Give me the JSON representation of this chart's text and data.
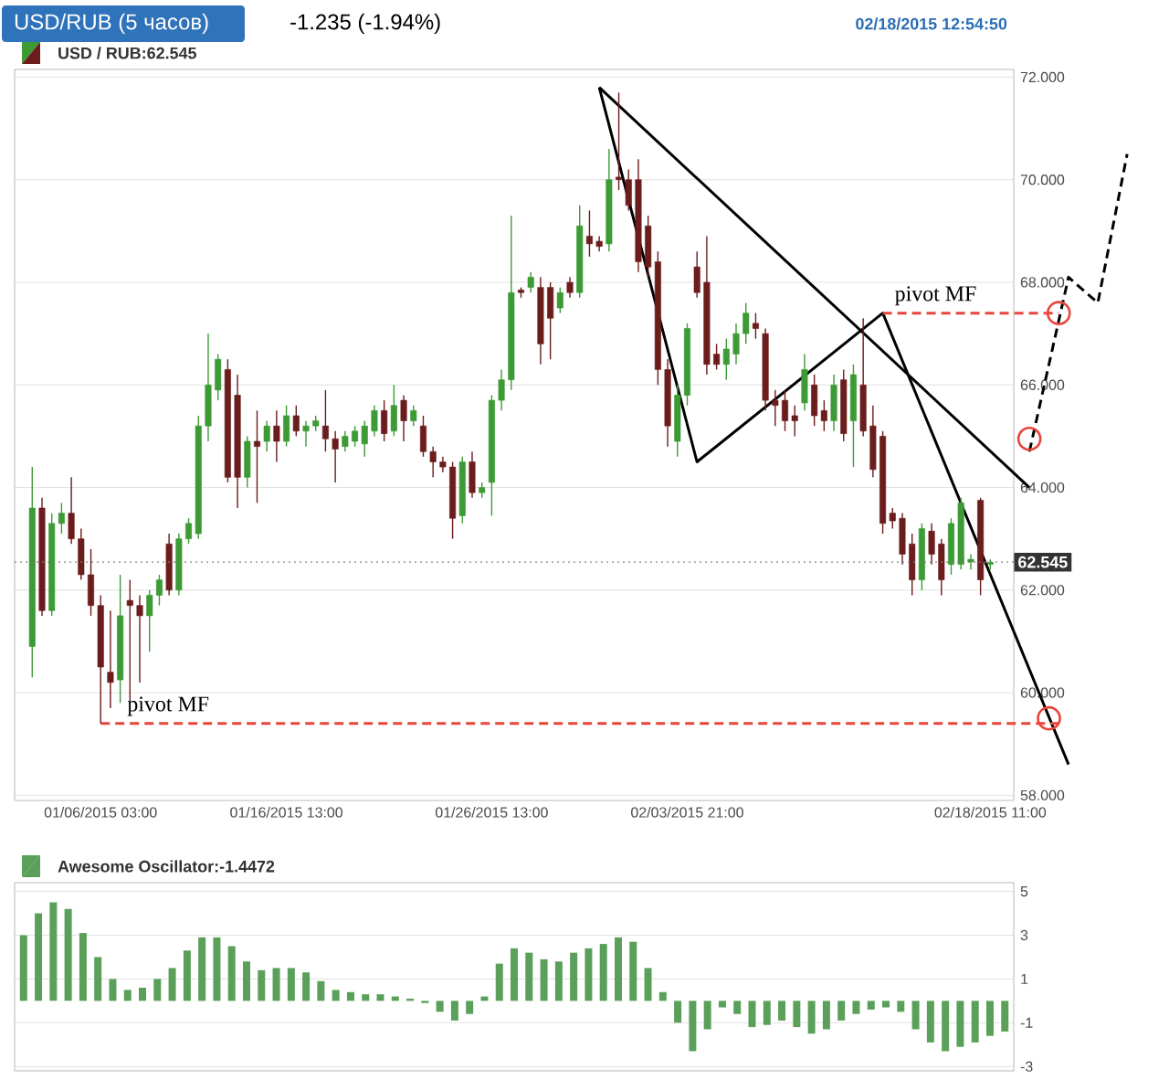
{
  "chart_data": [
    {
      "type": "candlestick",
      "title": "USD/RUB (5 часов)",
      "annotations": [
        "-1.235 (-1.94%)",
        "02/18/2015 12:54:50",
        "pivot MF",
        "pivot MF"
      ],
      "categories": [
        null,
        null,
        null,
        null,
        null,
        null,
        null,
        "01/06/2015 03:00",
        null,
        null,
        null,
        null,
        null,
        null,
        null,
        null,
        null,
        null,
        null,
        null,
        null,
        null,
        null,
        null,
        null,
        null,
        "01/16/2015 13:00",
        null,
        null,
        null,
        null,
        null,
        null,
        null,
        null,
        null,
        null,
        null,
        null,
        null,
        null,
        null,
        null,
        null,
        null,
        null,
        null,
        "01/26/2015 13:00",
        null,
        null,
        null,
        null,
        null,
        null,
        null,
        null,
        null,
        null,
        null,
        null,
        null,
        null,
        null,
        null,
        null,
        null,
        null,
        "02/03/2015 21:00",
        null,
        null,
        null,
        null,
        null,
        null,
        null,
        null,
        null,
        null,
        null,
        null,
        null,
        null,
        null,
        null,
        null,
        null,
        null,
        null,
        null,
        null,
        null,
        null,
        null,
        null,
        null,
        null,
        null,
        null,
        "02/18/2015 11:00",
        null,
        null,
        null,
        null,
        null,
        null,
        null,
        null,
        null,
        null,
        null,
        null,
        null,
        null
      ],
      "series": [
        {
          "type": "candlestick",
          "name": "USD / RUB:62.545",
          "ohlc": [
            [
              60.9,
              64.4,
              60.3,
              63.6
            ],
            [
              63.6,
              63.8,
              61.5,
              61.6
            ],
            [
              61.6,
              63.5,
              61.5,
              63.3
            ],
            [
              63.3,
              63.7,
              63.1,
              63.5
            ],
            [
              63.5,
              64.2,
              62.9,
              63.0
            ],
            [
              63.0,
              63.2,
              62.2,
              62.3
            ],
            [
              62.3,
              62.8,
              61.5,
              61.7
            ],
            [
              61.7,
              61.9,
              59.4,
              60.5
            ],
            [
              60.4,
              61.6,
              59.7,
              60.2
            ],
            [
              60.25,
              62.3,
              59.8,
              61.5
            ],
            [
              61.8,
              62.2,
              59.8,
              61.7
            ],
            [
              61.7,
              61.9,
              60.2,
              61.5
            ],
            [
              61.5,
              62.0,
              60.8,
              61.9
            ],
            [
              61.9,
              62.3,
              61.7,
              62.2
            ],
            [
              62.9,
              63.1,
              61.9,
              62.0
            ],
            [
              62.0,
              63.1,
              61.9,
              63.0
            ],
            [
              63.0,
              63.4,
              62.9,
              63.3
            ],
            [
              63.1,
              65.4,
              63.0,
              65.2
            ],
            [
              65.2,
              67.0,
              64.9,
              66.0
            ],
            [
              65.9,
              66.6,
              65.7,
              66.5
            ],
            [
              66.3,
              66.5,
              64.1,
              64.2
            ],
            [
              65.8,
              66.2,
              63.6,
              64.2
            ],
            [
              64.2,
              65.0,
              64.0,
              64.9
            ],
            [
              64.9,
              65.5,
              63.7,
              64.8
            ],
            [
              64.9,
              65.3,
              64.7,
              65.2
            ],
            [
              65.2,
              65.5,
              64.5,
              64.9
            ],
            [
              64.9,
              65.6,
              64.8,
              65.4
            ],
            [
              65.4,
              65.6,
              65.0,
              65.1
            ],
            [
              65.1,
              65.3,
              64.8,
              65.2
            ],
            [
              65.2,
              65.4,
              65.1,
              65.3
            ],
            [
              65.2,
              65.9,
              64.7,
              64.95
            ],
            [
              64.95,
              65.1,
              64.1,
              64.75
            ],
            [
              64.8,
              65.1,
              64.7,
              65.0
            ],
            [
              64.9,
              65.2,
              64.8,
              65.1
            ],
            [
              64.85,
              65.3,
              64.6,
              65.2
            ],
            [
              65.1,
              65.6,
              65.0,
              65.5
            ],
            [
              65.5,
              65.7,
              64.9,
              65.05
            ],
            [
              65.1,
              66.0,
              65.0,
              65.6
            ],
            [
              65.7,
              65.8,
              64.9,
              65.3
            ],
            [
              65.3,
              65.6,
              65.2,
              65.5
            ],
            [
              65.2,
              65.4,
              64.6,
              64.7
            ],
            [
              64.7,
              64.8,
              64.2,
              64.5
            ],
            [
              64.5,
              64.6,
              64.3,
              64.4
            ],
            [
              64.4,
              64.5,
              63.0,
              63.4
            ],
            [
              63.45,
              64.6,
              63.3,
              64.5
            ],
            [
              64.5,
              64.7,
              63.8,
              63.9
            ],
            [
              63.9,
              64.1,
              63.8,
              64.0
            ],
            [
              64.1,
              65.8,
              63.45,
              65.7
            ],
            [
              65.7,
              66.3,
              65.5,
              66.1
            ],
            [
              66.1,
              69.3,
              65.9,
              67.8
            ],
            [
              67.85,
              67.9,
              67.7,
              67.8
            ],
            [
              67.9,
              68.2,
              67.8,
              68.1
            ],
            [
              67.9,
              68.1,
              66.4,
              66.8
            ],
            [
              67.9,
              68.0,
              66.5,
              67.3
            ],
            [
              67.5,
              67.9,
              67.4,
              67.8
            ],
            [
              68.0,
              68.1,
              67.7,
              67.8
            ],
            [
              67.8,
              69.5,
              67.7,
              69.1
            ],
            [
              68.9,
              69.4,
              68.5,
              68.75
            ],
            [
              68.8,
              68.9,
              68.6,
              68.7
            ],
            [
              68.75,
              70.6,
              68.6,
              70.0
            ],
            [
              70.05,
              71.7,
              69.8,
              70.0
            ],
            [
              70.0,
              70.2,
              69.4,
              69.5
            ],
            [
              70.0,
              70.4,
              68.2,
              68.4
            ],
            [
              69.1,
              69.3,
              68.1,
              68.3
            ],
            [
              68.4,
              68.6,
              66.0,
              66.3
            ],
            [
              66.3,
              66.5,
              64.8,
              65.2
            ],
            [
              64.9,
              66.0,
              64.6,
              65.8
            ],
            [
              65.8,
              67.2,
              65.6,
              67.1
            ],
            [
              68.3,
              68.6,
              67.7,
              67.8
            ],
            [
              68.0,
              68.9,
              66.2,
              66.4
            ],
            [
              66.6,
              66.8,
              66.3,
              66.4
            ],
            [
              66.4,
              66.9,
              66.1,
              66.7
            ],
            [
              66.6,
              67.2,
              66.4,
              67.0
            ],
            [
              67.0,
              67.6,
              66.8,
              67.4
            ],
            [
              67.2,
              67.4,
              66.9,
              67.1
            ],
            [
              67.0,
              67.1,
              65.5,
              65.7
            ],
            [
              65.7,
              65.9,
              65.2,
              65.6
            ],
            [
              65.7,
              65.9,
              65.1,
              65.3
            ],
            [
              65.4,
              65.6,
              65.0,
              65.3
            ],
            [
              65.65,
              66.6,
              65.5,
              66.3
            ],
            [
              66.0,
              66.2,
              65.2,
              65.4
            ],
            [
              65.5,
              65.7,
              65.1,
              65.3
            ],
            [
              65.3,
              66.2,
              65.1,
              66.0
            ],
            [
              66.1,
              66.3,
              64.9,
              65.05
            ],
            [
              65.3,
              66.4,
              64.4,
              66.2
            ],
            [
              66.0,
              67.3,
              65.0,
              65.1
            ],
            [
              65.2,
              65.6,
              64.2,
              64.35
            ],
            [
              65.0,
              65.1,
              63.1,
              63.3
            ],
            [
              63.5,
              63.6,
              63.2,
              63.35
            ],
            [
              63.4,
              63.5,
              62.5,
              62.7
            ],
            [
              62.9,
              63.1,
              61.9,
              62.2
            ],
            [
              62.2,
              63.3,
              62.0,
              63.2
            ],
            [
              63.15,
              63.3,
              62.5,
              62.7
            ],
            [
              62.9,
              63.0,
              61.9,
              62.2
            ],
            [
              62.5,
              63.4,
              62.3,
              63.3
            ],
            [
              62.5,
              63.8,
              62.4,
              63.7
            ],
            [
              62.55,
              62.7,
              62.4,
              62.6
            ],
            [
              63.75,
              63.8,
              61.9,
              62.2
            ],
            [
              62.5,
              62.6,
              62.4,
              62.545
            ],
            null,
            null,
            null,
            null,
            null,
            null,
            null,
            null,
            null,
            null,
            null,
            null,
            null,
            null
          ],
          "colors": [
            "#3d9b35",
            "#6b1c1c",
            "#3d9b35",
            "#3d9b35",
            "#6b1c1c",
            "#6b1c1c",
            "#6b1c1c",
            "#6b1c1c",
            "#6b1c1c",
            "#3d9b35",
            "#6b1c1c",
            "#6b1c1c",
            "#3d9b35",
            "#3d9b35",
            "#6b1c1c",
            "#3d9b35",
            "#3d9b35",
            "#3d9b35",
            "#3d9b35",
            "#3d9b35",
            "#6b1c1c",
            "#6b1c1c",
            "#3d9b35",
            "#6b1c1c",
            "#3d9b35",
            "#6b1c1c",
            "#3d9b35",
            "#6b1c1c",
            "#3d9b35",
            "#3d9b35",
            "#6b1c1c",
            "#6b1c1c",
            "#3d9b35",
            "#3d9b35",
            "#3d9b35",
            "#3d9b35",
            "#6b1c1c",
            "#3d9b35",
            "#6b1c1c",
            "#3d9b35",
            "#6b1c1c",
            "#6b1c1c",
            "#6b1c1c",
            "#6b1c1c",
            "#3d9b35",
            "#6b1c1c",
            "#3d9b35",
            "#3d9b35",
            "#3d9b35",
            "#3d9b35",
            "#6b1c1c",
            "#3d9b35",
            "#6b1c1c",
            "#6b1c1c",
            "#3d9b35",
            "#6b1c1c",
            "#3d9b35",
            "#6b1c1c",
            "#6b1c1c",
            "#3d9b35",
            "#6b1c1c",
            "#6b1c1c",
            "#6b1c1c",
            "#6b1c1c",
            "#6b1c1c",
            "#6b1c1c",
            "#3d9b35",
            "#3d9b35",
            "#6b1c1c",
            "#6b1c1c",
            "#6b1c1c",
            "#3d9b35",
            "#3d9b35",
            "#3d9b35",
            "#6b1c1c",
            "#6b1c1c",
            "#6b1c1c",
            "#6b1c1c",
            "#6b1c1c",
            "#3d9b35",
            "#6b1c1c",
            "#6b1c1c",
            "#3d9b35",
            "#6b1c1c",
            "#3d9b35",
            "#6b1c1c",
            "#6b1c1c",
            "#6b1c1c",
            "#6b1c1c",
            "#6b1c1c",
            "#6b1c1c",
            "#3d9b35",
            "#6b1c1c",
            "#6b1c1c",
            "#3d9b35",
            "#3d9b35",
            "#3d9b35",
            "#6b1c1c",
            "#3d9b35",
            null,
            null,
            null,
            null,
            null,
            null,
            null,
            null,
            null,
            null,
            null,
            null,
            null,
            null
          ]
        },
        {
          "type": "line",
          "color": "#000000",
          "values": [
            null,
            null,
            null,
            null,
            null,
            null,
            null,
            null,
            null,
            null,
            null,
            null,
            null,
            null,
            null,
            null,
            null,
            null,
            null,
            null,
            null,
            null,
            null,
            null,
            null,
            null,
            null,
            null,
            null,
            null,
            null,
            null,
            null,
            null,
            null,
            null,
            null,
            null,
            null,
            null,
            null,
            null,
            null,
            null,
            null,
            null,
            null,
            null,
            null,
            null,
            null,
            null,
            null,
            null,
            null,
            null,
            null,
            null,
            71.8,
            null,
            null,
            null,
            null,
            null,
            null,
            null,
            null,
            null,
            null,
            null,
            null,
            null,
            null,
            null,
            null,
            null,
            null,
            null,
            null,
            null,
            null,
            null,
            null,
            null,
            null,
            null,
            null,
            null,
            null,
            null,
            null,
            null,
            null,
            null,
            null,
            null,
            null,
            null,
            null,
            null,
            null,
            null,
            64.0,
            null,
            null,
            null,
            null,
            null,
            null,
            null,
            null,
            null,
            null
          ]
        },
        {
          "type": "line",
          "color": "#000000",
          "values": [
            null,
            null,
            null,
            null,
            null,
            null,
            null,
            null,
            null,
            null,
            null,
            null,
            null,
            null,
            null,
            null,
            null,
            null,
            null,
            null,
            null,
            null,
            null,
            null,
            null,
            null,
            null,
            null,
            null,
            null,
            null,
            null,
            null,
            null,
            null,
            null,
            null,
            null,
            null,
            null,
            null,
            null,
            null,
            null,
            null,
            null,
            null,
            null,
            null,
            null,
            null,
            null,
            null,
            null,
            null,
            null,
            null,
            null,
            71.8,
            null,
            null,
            null,
            null,
            null,
            null,
            null,
            null,
            null,
            64.5,
            null,
            null,
            null,
            null,
            null,
            null,
            null,
            null,
            null,
            null,
            null,
            null,
            null,
            null,
            null,
            null,
            null,
            null,
            67.4,
            null,
            null,
            null,
            null,
            null,
            null,
            null,
            null,
            null,
            null,
            null,
            null,
            null,
            null,
            null,
            null,
            null,
            null,
            58.6,
            null,
            null,
            null,
            null,
            null,
            null
          ]
        },
        {
          "type": "line",
          "color": "#000000",
          "line_style": "dashed",
          "values": [
            null,
            null,
            null,
            null,
            null,
            null,
            null,
            null,
            null,
            null,
            null,
            null,
            null,
            null,
            null,
            null,
            null,
            null,
            null,
            null,
            null,
            null,
            null,
            null,
            null,
            null,
            null,
            null,
            null,
            null,
            null,
            null,
            null,
            null,
            null,
            null,
            null,
            null,
            null,
            null,
            null,
            null,
            null,
            null,
            null,
            null,
            null,
            null,
            null,
            null,
            null,
            null,
            null,
            null,
            null,
            null,
            null,
            null,
            null,
            null,
            null,
            null,
            null,
            null,
            null,
            null,
            null,
            null,
            null,
            null,
            null,
            null,
            null,
            null,
            null,
            null,
            null,
            null,
            null,
            null,
            null,
            null,
            null,
            null,
            null,
            null,
            null,
            null,
            null,
            null,
            null,
            null,
            null,
            null,
            null,
            null,
            null,
            null,
            null,
            null,
            null,
            null,
            64.7,
            null,
            null,
            null,
            68.1,
            null,
            null,
            67.6,
            null,
            null,
            70.5
          ]
        },
        {
          "type": "line",
          "color": "#e8463c",
          "line_style": "dashed",
          "values": [
            null,
            null,
            null,
            null,
            null,
            null,
            null,
            59.4,
            null,
            null,
            null,
            null,
            null,
            null,
            null,
            null,
            null,
            null,
            null,
            null,
            null,
            null,
            null,
            null,
            null,
            null,
            null,
            null,
            null,
            null,
            null,
            null,
            null,
            null,
            null,
            null,
            null,
            null,
            null,
            null,
            null,
            null,
            null,
            null,
            null,
            null,
            null,
            null,
            null,
            null,
            null,
            null,
            null,
            null,
            null,
            null,
            null,
            null,
            null,
            null,
            null,
            null,
            null,
            null,
            null,
            null,
            null,
            null,
            null,
            null,
            null,
            null,
            null,
            null,
            null,
            null,
            null,
            null,
            null,
            null,
            null,
            null,
            null,
            null,
            null,
            null,
            null,
            null,
            null,
            null,
            null,
            null,
            null,
            null,
            null,
            null,
            null,
            null,
            null,
            null,
            null,
            null,
            null,
            null,
            null,
            59.4,
            null,
            null,
            null,
            null,
            null,
            null,
            null
          ]
        },
        {
          "type": "line",
          "color": "#e8463c",
          "line_style": "dashed",
          "values": [
            null,
            null,
            null,
            null,
            null,
            null,
            null,
            null,
            null,
            null,
            null,
            null,
            null,
            null,
            null,
            null,
            null,
            null,
            null,
            null,
            null,
            null,
            null,
            null,
            null,
            null,
            null,
            null,
            null,
            null,
            null,
            null,
            null,
            null,
            null,
            null,
            null,
            null,
            null,
            null,
            null,
            null,
            null,
            null,
            null,
            null,
            null,
            null,
            null,
            null,
            null,
            null,
            null,
            null,
            null,
            null,
            null,
            null,
            null,
            null,
            null,
            null,
            null,
            null,
            null,
            null,
            null,
            null,
            null,
            null,
            null,
            null,
            null,
            null,
            null,
            null,
            null,
            null,
            null,
            null,
            null,
            null,
            null,
            null,
            null,
            null,
            null,
            67.4,
            null,
            null,
            null,
            null,
            null,
            null,
            null,
            null,
            null,
            null,
            null,
            null,
            null,
            null,
            null,
            null,
            null,
            67.4,
            null,
            null,
            null,
            null,
            null,
            null,
            null
          ]
        },
        {
          "type": "scatter",
          "color": "#e8463c",
          "marker": "circle",
          "values": [
            null,
            null,
            null,
            null,
            null,
            null,
            null,
            null,
            null,
            null,
            null,
            null,
            null,
            null,
            null,
            null,
            null,
            null,
            null,
            null,
            null,
            null,
            null,
            null,
            null,
            null,
            null,
            null,
            null,
            null,
            null,
            null,
            null,
            null,
            null,
            null,
            null,
            null,
            null,
            null,
            null,
            null,
            null,
            null,
            null,
            null,
            null,
            null,
            null,
            null,
            null,
            null,
            null,
            null,
            null,
            null,
            null,
            null,
            null,
            null,
            null,
            null,
            null,
            null,
            null,
            null,
            null,
            null,
            null,
            null,
            null,
            null,
            null,
            null,
            null,
            null,
            null,
            null,
            null,
            null,
            null,
            null,
            null,
            null,
            null,
            null,
            null,
            null,
            null,
            null,
            null,
            null,
            null,
            null,
            null,
            null,
            null,
            null,
            null,
            null,
            null,
            null,
            64.95,
            null,
            59.5,
            67.4,
            null,
            null,
            null,
            null,
            null,
            null,
            null
          ]
        }
      ],
      "ylim": [
        57.9,
        72.15
      ],
      "yticks": [
        {
          "value": 58,
          "label": "58.000"
        },
        {
          "value": 60,
          "label": "60.000"
        },
        {
          "value": 62,
          "label": "62.000"
        },
        {
          "value": 64,
          "label": "64.000"
        },
        {
          "value": 66,
          "label": "66.000"
        },
        {
          "value": 68,
          "label": "68.000"
        },
        {
          "value": 70,
          "label": "70.000"
        },
        {
          "value": 72,
          "label": "72.000"
        }
      ],
      "grid": "y",
      "legend": "top left",
      "ref_lines": [
        {
          "axis": "y",
          "value": 62.545,
          "label": "62.545",
          "color": "#808080",
          "line_style": "dotted"
        }
      ]
    },
    {
      "type": "bar",
      "categories": [
        null,
        null,
        null,
        null,
        null,
        null,
        null,
        null,
        null,
        null,
        null,
        null,
        null,
        null,
        null,
        null,
        null,
        null,
        null,
        null,
        null,
        null,
        null,
        null,
        null,
        null,
        null,
        null,
        null,
        null,
        null,
        null,
        null,
        null,
        null,
        null,
        null,
        null,
        null,
        null,
        null,
        null,
        null,
        null,
        null,
        null,
        null,
        null,
        null,
        null,
        null,
        null,
        null,
        null,
        null,
        null,
        null,
        null,
        null,
        null,
        null,
        null,
        null,
        null,
        null,
        null,
        null
      ],
      "series": [
        {
          "name": "Awesome Oscillator:-1.4472",
          "color": "#5aa05a",
          "values": [
            3.0,
            4.0,
            4.5,
            4.2,
            3.1,
            2.0,
            1.0,
            0.5,
            0.6,
            1.0,
            1.5,
            2.3,
            2.9,
            2.9,
            2.5,
            1.8,
            1.4,
            1.5,
            1.5,
            1.3,
            0.9,
            0.5,
            0.4,
            0.3,
            0.3,
            0.2,
            0.1,
            -0.1,
            -0.5,
            -0.9,
            -0.6,
            0.2,
            1.7,
            2.4,
            2.2,
            1.9,
            1.8,
            2.2,
            2.4,
            2.6,
            2.9,
            2.7,
            1.5,
            0.4,
            -1.0,
            -2.3,
            -1.3,
            -0.3,
            -0.6,
            -1.2,
            -1.1,
            -0.9,
            -1.2,
            -1.5,
            -1.3,
            -0.9,
            -0.6,
            -0.4,
            -0.3,
            -0.5,
            -1.3,
            -1.9,
            -2.3,
            -2.1,
            -1.9,
            -1.6,
            -1.4
          ]
        }
      ],
      "ylim": [
        -3.2,
        5.4
      ],
      "yticks": [
        5,
        3,
        1,
        -1,
        -3
      ],
      "grid": "y",
      "legend": "top left"
    }
  ]
}
